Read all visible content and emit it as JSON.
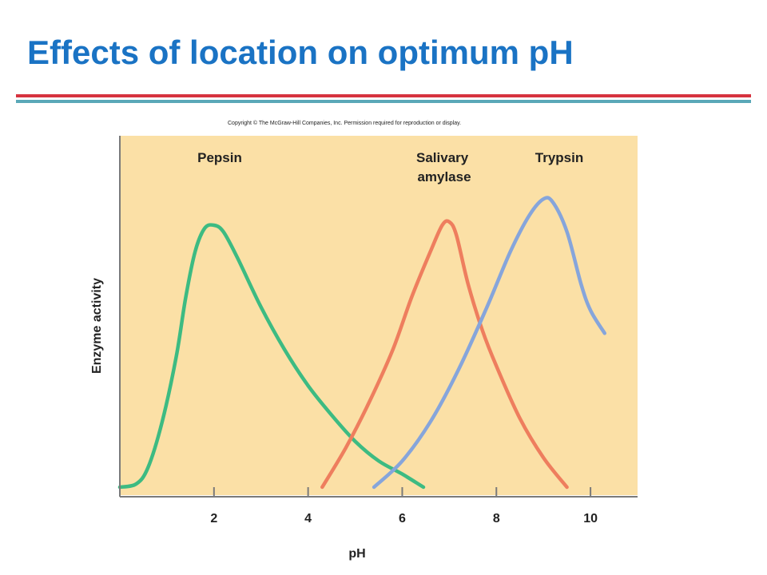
{
  "slide": {
    "title": "Effects of location on optimum pH",
    "copyright": "Copyright © The McGraw-Hill Companies, Inc. Permission required for reproduction or display."
  },
  "colors": {
    "title": "#1a73c4",
    "rule_red": "#d6333f",
    "rule_teal": "#5aa8b8",
    "plot_background": "#fbe0a6",
    "pepsin": "#3dbb82",
    "salivary_amylase": "#ee7e5e",
    "trypsin": "#86a5db"
  },
  "chart_data": {
    "type": "line",
    "xlabel": "pH",
    "ylabel": "Enzyme activity",
    "xlim": [
      0,
      11
    ],
    "ylim": [
      0,
      1
    ],
    "xticks": [
      2,
      4,
      6,
      8,
      10
    ],
    "y_tick_labels": false,
    "grid": false,
    "legend": "inline labels above peaks",
    "series": [
      {
        "name": "Pepsin",
        "color": "#3dbb82",
        "points": [
          [
            0,
            0.0
          ],
          [
            0.35,
            0.01
          ],
          [
            0.6,
            0.06
          ],
          [
            0.9,
            0.2
          ],
          [
            1.2,
            0.4
          ],
          [
            1.4,
            0.58
          ],
          [
            1.6,
            0.72
          ],
          [
            1.8,
            0.79
          ],
          [
            2.0,
            0.8
          ],
          [
            2.2,
            0.78
          ],
          [
            2.5,
            0.7
          ],
          [
            3.0,
            0.55
          ],
          [
            3.5,
            0.42
          ],
          [
            4.0,
            0.31
          ],
          [
            4.5,
            0.22
          ],
          [
            5.0,
            0.14
          ],
          [
            5.5,
            0.08
          ],
          [
            6.0,
            0.04
          ],
          [
            6.45,
            0.0
          ]
        ]
      },
      {
        "name": "Salivary amylase",
        "color": "#ee7e5e",
        "points": [
          [
            4.3,
            0.0
          ],
          [
            4.8,
            0.12
          ],
          [
            5.3,
            0.26
          ],
          [
            5.8,
            0.42
          ],
          [
            6.2,
            0.58
          ],
          [
            6.6,
            0.72
          ],
          [
            6.85,
            0.8
          ],
          [
            7.0,
            0.81
          ],
          [
            7.15,
            0.77
          ],
          [
            7.4,
            0.62
          ],
          [
            7.7,
            0.48
          ],
          [
            8.0,
            0.37
          ],
          [
            8.5,
            0.21
          ],
          [
            9.0,
            0.09
          ],
          [
            9.5,
            0.0
          ]
        ]
      },
      {
        "name": "Trypsin",
        "color": "#86a5db",
        "points": [
          [
            5.4,
            0.0
          ],
          [
            6.0,
            0.08
          ],
          [
            6.6,
            0.2
          ],
          [
            7.2,
            0.36
          ],
          [
            7.8,
            0.55
          ],
          [
            8.3,
            0.72
          ],
          [
            8.7,
            0.83
          ],
          [
            9.0,
            0.88
          ],
          [
            9.2,
            0.87
          ],
          [
            9.5,
            0.78
          ],
          [
            9.8,
            0.62
          ],
          [
            10.0,
            0.54
          ],
          [
            10.3,
            0.47
          ]
        ]
      }
    ],
    "annotations": [
      {
        "text": "Pepsin",
        "series": "Pepsin"
      },
      {
        "text": "Salivary\namylase",
        "series": "Salivary amylase"
      },
      {
        "text": "Trypsin",
        "series": "Trypsin"
      }
    ]
  }
}
